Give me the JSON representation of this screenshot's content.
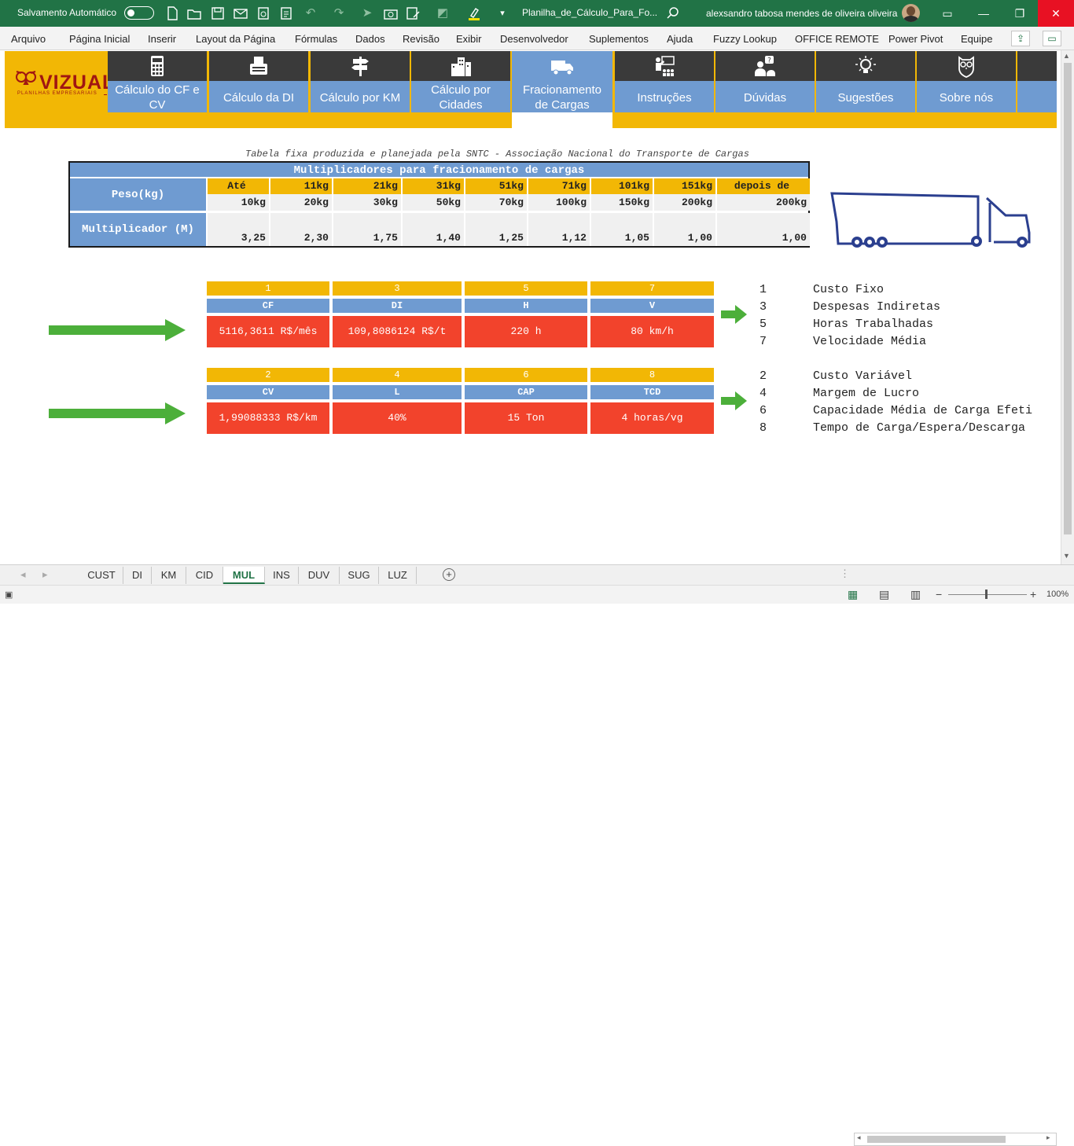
{
  "titlebar": {
    "autosave_label": "Salvamento Automático",
    "doc_title": "Planilha_de_Cálculo_Para_Fo...",
    "user_name": "alexsandro tabosa mendes de oliveira oliveira"
  },
  "menu": [
    "Arquivo",
    "Página Inicial",
    "Inserir",
    "Layout da Página",
    "Fórmulas",
    "Dados",
    "Revisão",
    "Exibir",
    "Desenvolvedor",
    "Suplementos",
    "Ajuda",
    "Fuzzy Lookup",
    "OFFICE REMOTE",
    "Power Pivot",
    "Equipe"
  ],
  "logo": {
    "name": "VIZUAL",
    "tagline": "PLANILHAS EMPRESARIAIS"
  },
  "nav": [
    {
      "label": "Cálculo do CF e CV",
      "icon": "calculator-icon"
    },
    {
      "label": "Cálculo da DI",
      "icon": "typewriter-icon"
    },
    {
      "label": "Cálculo por KM",
      "icon": "signpost-icon"
    },
    {
      "label": "Cálculo por Cidades",
      "icon": "buildings-icon"
    },
    {
      "label": "Fracionamento de Cargas",
      "icon": "truck-icon"
    },
    {
      "label": "Instruções",
      "icon": "presentation-icon"
    },
    {
      "label": "Dúvidas",
      "icon": "question-person-icon"
    },
    {
      "label": "Sugestões",
      "icon": "lightbulb-icon"
    },
    {
      "label": "Sobre nós",
      "icon": "owl-icon"
    }
  ],
  "table": {
    "note": "Tabela fixa produzida e planejada pela SNTC - Associação Nacional do Transporte de Cargas",
    "title": "Multiplicadores para fracionamento de cargas",
    "weight_header": "Peso(kg)",
    "mult_header": "Multiplicador (M)",
    "from": [
      "Até",
      "11kg",
      "21kg",
      "31kg",
      "51kg",
      "71kg",
      "101kg",
      "151kg",
      "depois de"
    ],
    "to": [
      "10kg",
      "20kg",
      "30kg",
      "50kg",
      "70kg",
      "100kg",
      "150kg",
      "200kg",
      "200kg"
    ],
    "multipliers": [
      "3,25",
      "2,30",
      "1,75",
      "1,40",
      "1,25",
      "1,12",
      "1,05",
      "1,00",
      "1,00"
    ]
  },
  "cards_row1": [
    {
      "num": "1",
      "label": "CF",
      "value": "5116,3611 R$/mês"
    },
    {
      "num": "3",
      "label": "DI",
      "value": "109,8086124 R$/t"
    },
    {
      "num": "5",
      "label": "H",
      "value": "220 h"
    },
    {
      "num": "7",
      "label": "V",
      "value": "80 km/h"
    }
  ],
  "cards_row2": [
    {
      "num": "2",
      "label": "CV",
      "value": "1,99088333 R$/km"
    },
    {
      "num": "4",
      "label": "L",
      "value": "40%"
    },
    {
      "num": "6",
      "label": "CAP",
      "value": "15 Ton"
    },
    {
      "num": "8",
      "label": "TCD",
      "value": "4 horas/vg"
    }
  ],
  "legend_row1": [
    {
      "num": "1",
      "text": "Custo Fixo"
    },
    {
      "num": "3",
      "text": "Despesas Indiretas"
    },
    {
      "num": "5",
      "text": "Horas Trabalhadas"
    },
    {
      "num": "7",
      "text": "Velocidade Média"
    }
  ],
  "legend_row2": [
    {
      "num": "2",
      "text": "Custo Variável"
    },
    {
      "num": "4",
      "text": "Margem de Lucro"
    },
    {
      "num": "6",
      "text": "Capacidade Média de Carga Efeti"
    },
    {
      "num": "8",
      "text": "Tempo de Carga/Espera/Descarga"
    }
  ],
  "sheets": [
    "CUST",
    "DI",
    "KM",
    "CID",
    "MUL",
    "INS",
    "DUV",
    "SUG",
    "LUZ"
  ],
  "active_sheet": "MUL",
  "zoom": "100%",
  "colors": {
    "excel_green": "#217346",
    "nav_blue": "#6f9bd1",
    "yellow": "#f2b705",
    "red": "#f2432c",
    "arrow_green": "#4caf3a"
  }
}
